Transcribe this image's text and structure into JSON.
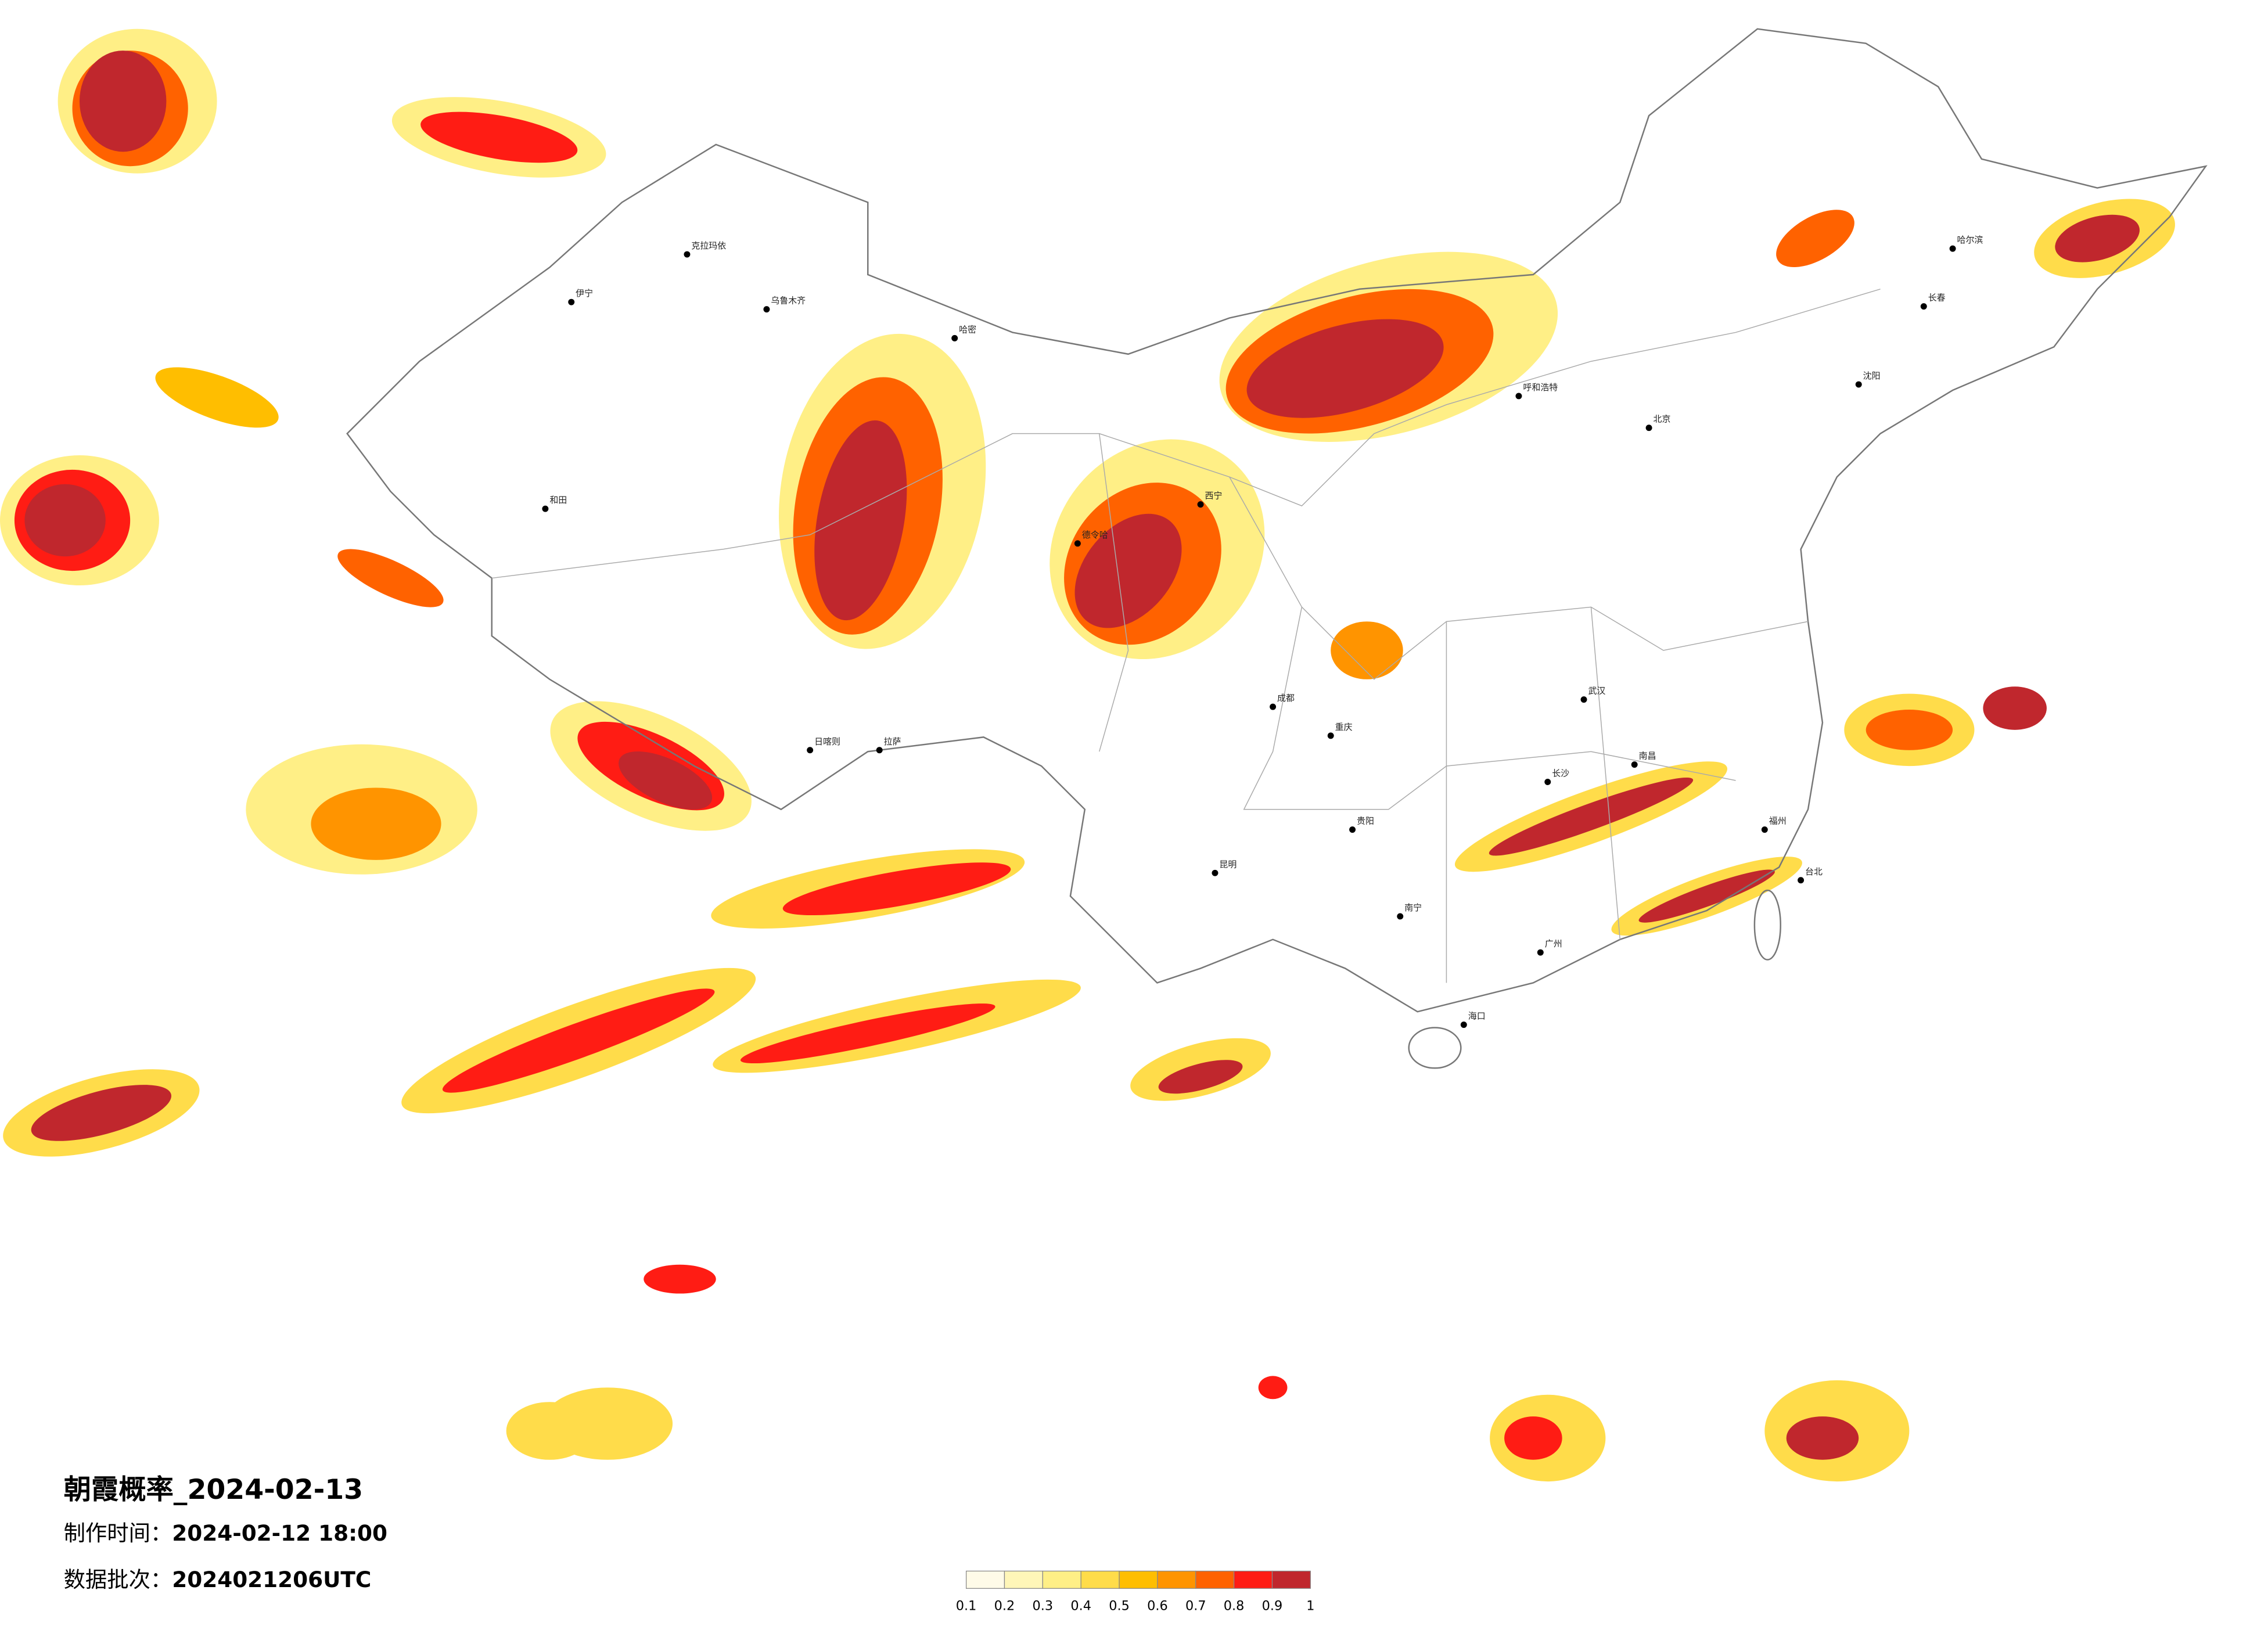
{
  "title": "朝霞概率_2024-02-13",
  "made_label": "制作时间：",
  "made_value": "2024-02-12 18:00",
  "batch_label": "数据批次：",
  "batch_value": "2024021206UTC",
  "legend": {
    "ticks": [
      0.1,
      0.2,
      0.3,
      0.4,
      0.5,
      0.6,
      0.7,
      0.8,
      0.9,
      1
    ],
    "colors": [
      "#fffbe8",
      "#fff6b8",
      "#ffef86",
      "#ffdc4a",
      "#ffbe00",
      "#ff9400",
      "#ff6200",
      "#ff1c14",
      "#c0272d"
    ]
  },
  "cities": [
    "克拉玛依",
    "伊宁",
    "乌鲁木齐",
    "哈密",
    "和田",
    "德令哈",
    "西宁",
    "日喀则",
    "拉萨",
    "呼和浩特",
    "北京",
    "哈尔滨",
    "长春",
    "沈阳",
    "成都",
    "重庆",
    "昆明",
    "贵阳",
    "长沙",
    "武汉",
    "南昌",
    "福州",
    "广州",
    "南宁",
    "海口",
    "台北"
  ]
}
